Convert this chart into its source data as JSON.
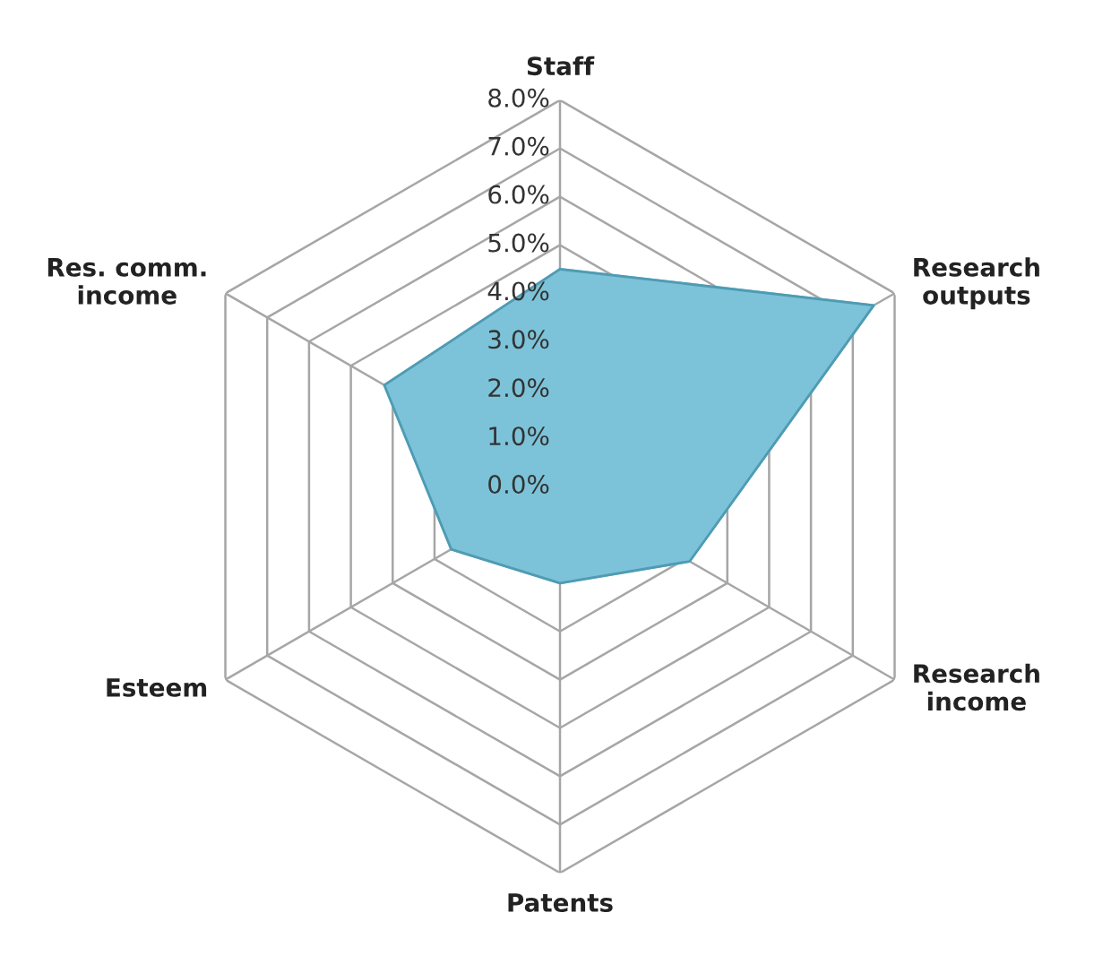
{
  "chart_data": {
    "type": "radar",
    "categories": [
      "Staff",
      "Research\noutputs",
      "Research\nincome",
      "Patents",
      "Esteem",
      "Res. comm.\nincome"
    ],
    "series": [
      {
        "color": "#7cc3d9",
        "values": [
          4.5,
          7.5,
          3.1,
          2.0,
          2.6,
          4.2
        ]
      }
    ],
    "ylim": [
      0,
      8
    ],
    "yticks": [
      {
        "value": 0,
        "label": "0.0%"
      },
      {
        "value": 1,
        "label": "1.0%"
      },
      {
        "value": 2,
        "label": "2.0%"
      },
      {
        "value": 3,
        "label": "3.0%"
      },
      {
        "value": 4,
        "label": "4.0%"
      },
      {
        "value": 5,
        "label": "5.0%"
      },
      {
        "value": 6,
        "label": "6.0%"
      },
      {
        "value": 7,
        "label": "7.0%"
      },
      {
        "value": 8,
        "label": "8.0%"
      }
    ],
    "grid": true
  }
}
